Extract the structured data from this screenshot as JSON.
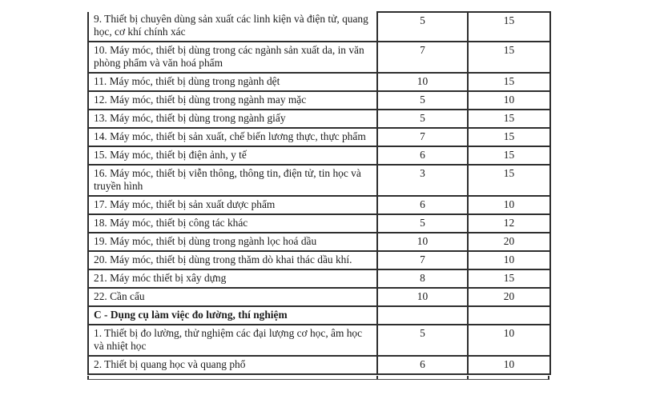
{
  "colors": {
    "border": "#2e2e2e",
    "text": "#1c1c1c",
    "background": "#ffffff"
  },
  "table": {
    "rows": [
      {
        "label": "9. Thiết bị chuyên dùng sản xuất các linh kiện và điện tử, quang học, cơ khí chính xác",
        "min": "5",
        "max": "15",
        "section_header": false
      },
      {
        "label": "10. Máy móc, thiết bị dùng trong các ngành sản xuất da, in văn phòng phẩm và văn hoá phẩm",
        "min": "7",
        "max": "15",
        "section_header": false
      },
      {
        "label": "11. Máy móc, thiết bị dùng trong ngành dệt",
        "min": "10",
        "max": "15",
        "section_header": false
      },
      {
        "label": "12. Máy móc, thiết bị dùng trong ngành may mặc",
        "min": "5",
        "max": "10",
        "section_header": false
      },
      {
        "label": "13. Máy móc, thiết bị dùng trong ngành giấy",
        "min": "5",
        "max": "15",
        "section_header": false
      },
      {
        "label": "14. Máy móc, thiết bị sản xuất, chế biến lương thực, thực phẩm",
        "min": "7",
        "max": "15",
        "section_header": false
      },
      {
        "label": "15. Máy móc, thiết bị điện ảnh, y tế",
        "min": "6",
        "max": "15",
        "section_header": false
      },
      {
        "label": "16. Máy móc, thiết bị viễn thông, thông tin, điện tử, tin học và truyền hình",
        "min": "3",
        "max": "15",
        "section_header": false
      },
      {
        "label": "17. Máy móc, thiết bị sản xuất dược phẩm",
        "min": "6",
        "max": "10",
        "section_header": false
      },
      {
        "label": "18. Máy móc, thiết bị công tác khác",
        "min": "5",
        "max": "12",
        "section_header": false
      },
      {
        "label": "19. Máy móc, thiết bị dùng trong ngành lọc hoá dầu",
        "min": "10",
        "max": "20",
        "section_header": false
      },
      {
        "label": "20. Máy móc, thiết bị dùng trong thăm dò khai thác dầu khí.",
        "min": "7",
        "max": "10",
        "section_header": false
      },
      {
        "label": "21. Máy móc thiết bị xây dựng",
        "min": "8",
        "max": "15",
        "section_header": false
      },
      {
        "label": "22. Cần cẩu",
        "min": "10",
        "max": "20",
        "section_header": false
      },
      {
        "label": "C - Dụng cụ làm việc đo lường, thí nghiệm",
        "min": "",
        "max": "",
        "section_header": true
      },
      {
        "label": "1. Thiết bị đo lường, thử nghiệm các đại lượng cơ học, âm học và nhiệt học",
        "min": "5",
        "max": "10",
        "section_header": false
      },
      {
        "label": "2. Thiết bị quang học và quang phổ",
        "min": "6",
        "max": "10",
        "section_header": false
      }
    ]
  }
}
